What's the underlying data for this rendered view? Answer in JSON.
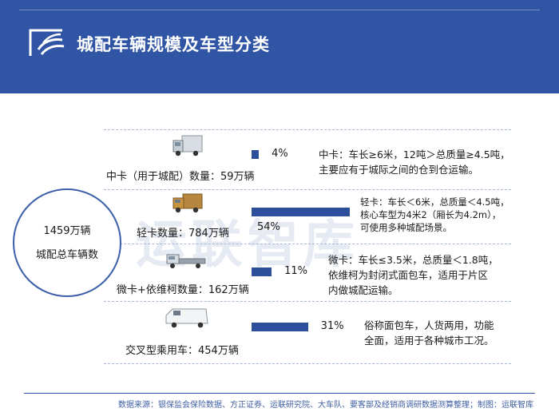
{
  "header": {
    "title": "城配车辆规模及车型分类"
  },
  "watermark": "运联智库",
  "total": {
    "value": "1459万辆",
    "label": "城配总车辆数"
  },
  "categories": [
    {
      "label": "中卡（用于城配）数量：59万辆",
      "percent_text": "4%",
      "desc": [
        "中卡：车长≥6米，12吨＞总质量≥4.5吨，",
        "主要应有于城际之间的仓到仓运输。"
      ]
    },
    {
      "label": "轻卡数量：784万辆",
      "percent_text": "54%",
      "desc": [
        "轻卡：车长＜6米，总质量＜4.5吨，",
        "核心车型为4米2（厢长为4.2m），",
        "可使用多种城配场景。"
      ]
    },
    {
      "label": "微卡+依维柯数量：162万辆",
      "percent_text": "11%",
      "desc": [
        "微卡：车长≤3.5米，总质量＜1.8吨，",
        "依维柯为封闭式面包车，适用于片区",
        "内做城配运输。"
      ]
    },
    {
      "label": "交叉型乘用车：454万辆",
      "percent_text": "31%",
      "desc": [
        "俗称面包车，人货两用，功能",
        "全面，适用于各种城市工况。"
      ]
    }
  ],
  "chart_data": {
    "type": "bar",
    "title": "城配车辆规模及车型分类",
    "categories": [
      "中卡（用于城配）",
      "轻卡",
      "微卡+依维柯",
      "交叉型乘用车"
    ],
    "values": [
      4,
      54,
      11,
      31
    ],
    "counts": [
      "59万辆",
      "784万辆",
      "162万辆",
      "454万辆"
    ],
    "unit": "%",
    "total": "1459万辆"
  },
  "source": "数据来源：银保监会保险数据、方正证券、运联研究院、大车队、要客部及经销商调研数据测算整理；制图：运联智库",
  "colors": {
    "header": "#2f55a4",
    "bar": "#2b4f9a",
    "circle": "#3a5ea8"
  },
  "icons": [
    "medium-truck-icon",
    "light-truck-icon",
    "mini-truck-icon",
    "van-icon"
  ]
}
